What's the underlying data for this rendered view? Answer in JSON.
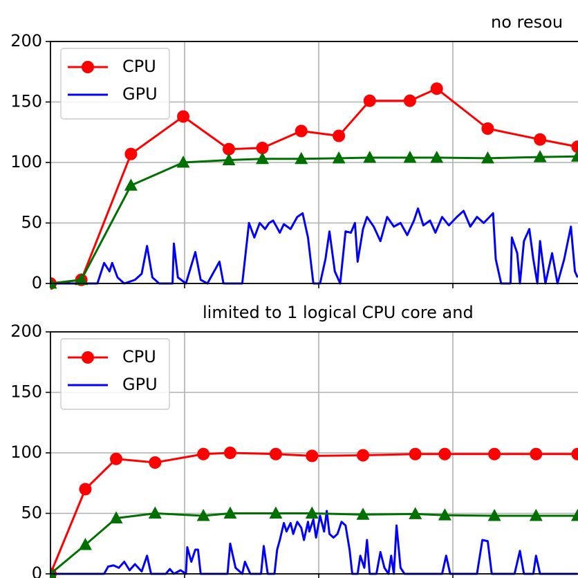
{
  "chart_data": [
    {
      "type": "line",
      "title": "no resou",
      "grid": true,
      "legend": "upper left",
      "xlim": [
        0,
        39.3
      ],
      "xticks": [
        0,
        10,
        20,
        30
      ],
      "ylim": [
        0,
        200
      ],
      "yticks": [
        0,
        50,
        100,
        150,
        200
      ],
      "series": [
        {
          "name": "CPU",
          "color": "#ff0000",
          "marker": "o",
          "x": [
            0,
            2.3,
            6.0,
            9.9,
            13.3,
            15.8,
            18.7,
            21.5,
            23.8,
            26.8,
            28.8,
            32.6,
            36.5,
            39.3
          ],
          "values": [
            0,
            3,
            107,
            138,
            111,
            112,
            126,
            122,
            151,
            151,
            161,
            128,
            119,
            113
          ]
        },
        {
          "name": "GPU",
          "color": "#0000ff",
          "marker": null,
          "x": [
            0,
            3.5,
            4.0,
            4.4,
            4.6,
            5.0,
            5.5,
            6.3,
            6.8,
            7.2,
            7.6,
            8.1,
            9.1,
            9.2,
            9.5,
            10.1,
            10.8,
            11.2,
            11.7,
            12.6,
            12.9,
            14.3,
            14.8,
            15.2,
            15.6,
            16.0,
            16.3,
            16.6,
            17.1,
            17.4,
            17.9,
            18.4,
            18.8,
            19.2,
            19.6,
            20.1,
            20.5,
            20.8,
            21.2,
            21.6,
            22.0,
            22.4,
            22.7,
            22.9,
            23.3,
            23.6,
            24.1,
            24.6,
            25.1,
            25.6,
            26.1,
            26.6,
            27.1,
            27.4,
            27.8,
            28.3,
            28.7,
            29.2,
            29.7,
            30.3,
            30.8,
            31.3,
            31.8,
            32.3,
            33.0,
            33.2,
            33.6,
            34.3,
            34.4,
            34.8,
            35.0,
            35.3,
            35.7,
            36.0,
            36.3,
            36.5,
            36.9,
            37.4,
            37.8,
            38.3,
            38.8,
            39.1,
            39.3
          ],
          "values": [
            0,
            0,
            17,
            10,
            17,
            5,
            0,
            3,
            8,
            31,
            5,
            0,
            0,
            33,
            5,
            0,
            26,
            3,
            0,
            18,
            0,
            0,
            50,
            38,
            50,
            45,
            50,
            52,
            42,
            49,
            45,
            55,
            58,
            38,
            0,
            0,
            20,
            43,
            10,
            0,
            43,
            42,
            50,
            18,
            45,
            55,
            47,
            35,
            55,
            47,
            50,
            40,
            52,
            62,
            48,
            52,
            42,
            55,
            48,
            55,
            60,
            47,
            55,
            50,
            58,
            20,
            0,
            0,
            38,
            25,
            0,
            35,
            45,
            20,
            0,
            35,
            0,
            25,
            0,
            20,
            47,
            10,
            5
          ]
        },
        {
          "color": "#007000",
          "marker": "^",
          "x": [
            0,
            2.3,
            6.0,
            9.9,
            13.3,
            15.8,
            18.7,
            21.5,
            23.8,
            26.8,
            28.8,
            32.6,
            36.5,
            39.3
          ],
          "values": [
            0,
            3,
            81,
            100,
            102,
            103,
            103,
            103.5,
            104,
            104,
            104,
            103.5,
            104.5,
            105
          ]
        }
      ]
    },
    {
      "type": "line",
      "title": "limited to 1 logical CPU core and",
      "grid": true,
      "legend": "upper left",
      "xlim": [
        0,
        39.3
      ],
      "xticks": [
        0,
        10,
        20,
        30
      ],
      "ylim": [
        0,
        200
      ],
      "yticks": [
        0,
        50,
        100,
        150,
        200
      ],
      "series": [
        {
          "name": "CPU",
          "color": "#ff0000",
          "marker": "o",
          "x": [
            0,
            2.6,
            4.9,
            7.8,
            11.4,
            13.4,
            16.8,
            19.5,
            23.3,
            27.2,
            29.4,
            33.1,
            36.2,
            39.3
          ],
          "values": [
            0,
            70,
            95,
            92,
            99,
            100,
            99,
            97.5,
            98,
            99,
            99,
            99,
            99,
            99
          ]
        },
        {
          "name": "GPU",
          "color": "#0000ff",
          "marker": null,
          "x": [
            0,
            4.0,
            4.3,
            4.7,
            5.1,
            5.5,
            5.9,
            6.3,
            6.8,
            7.2,
            7.5,
            8.6,
            8.9,
            9.2,
            9.7,
            10.1,
            10.2,
            10.5,
            10.8,
            11.0,
            11.2,
            13.2,
            13.4,
            13.8,
            14.3,
            14.5,
            14.9,
            15.7,
            15.9,
            16.2,
            16.7,
            16.9,
            17.1,
            17.4,
            17.6,
            17.9,
            18.1,
            18.4,
            18.7,
            18.9,
            19.2,
            19.3,
            19.6,
            19.8,
            20.1,
            20.4,
            20.6,
            20.8,
            21.1,
            21.4,
            21.7,
            22.0,
            22.3,
            22.5,
            22.9,
            23.1,
            23.4,
            23.6,
            23.8,
            24.3,
            24.6,
            24.9,
            25.2,
            25.4,
            25.6,
            25.8,
            26.1,
            26.4,
            29.2,
            29.5,
            29.8,
            31.8,
            32.2,
            32.6,
            32.9,
            34.6,
            35.0,
            35.3,
            36.0,
            36.2,
            36.5,
            39.3
          ],
          "values": [
            0,
            0,
            6,
            7,
            5,
            10,
            3,
            8,
            2,
            15,
            0,
            0,
            4,
            0,
            3,
            0,
            22,
            10,
            20,
            20,
            0,
            0,
            25,
            5,
            0,
            10,
            0,
            0,
            23,
            0,
            0,
            20,
            28,
            42,
            35,
            42,
            33,
            43,
            38,
            28,
            43,
            35,
            45,
            30,
            48,
            35,
            52,
            33,
            30,
            33,
            43,
            40,
            20,
            0,
            0,
            15,
            5,
            28,
            0,
            0,
            18,
            5,
            0,
            15,
            0,
            40,
            5,
            0,
            0,
            15,
            0,
            0,
            28,
            27,
            0,
            0,
            19,
            0,
            0,
            15,
            0,
            0
          ]
        },
        {
          "color": "#007000",
          "marker": "^",
          "x": [
            0,
            2.6,
            4.9,
            7.8,
            11.4,
            13.4,
            16.8,
            19.5,
            23.3,
            27.2,
            29.4,
            33.1,
            36.2,
            39.3
          ],
          "values": [
            0,
            24,
            46,
            50,
            48,
            50,
            50,
            50,
            49,
            49.5,
            48.5,
            48,
            48,
            48
          ]
        }
      ]
    }
  ]
}
